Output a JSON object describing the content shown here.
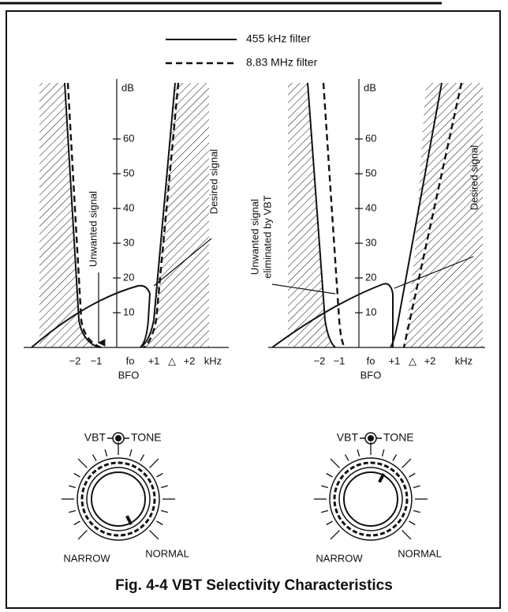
{
  "legend": [
    "455 kHz filter",
    "8.83 MHz filter"
  ],
  "panels": [
    {
      "y_unit": "dB",
      "y_ticks": [
        "10",
        "20",
        "30",
        "40",
        "50",
        "60"
      ],
      "x_ticks": [
        "−2",
        "−1",
        "fo",
        "+1",
        "△",
        "+2",
        "kHz"
      ],
      "x_label": "BFO",
      "annotations": [
        "Unwanted signal",
        "Desired signal"
      ]
    },
    {
      "y_unit": "dB",
      "y_ticks": [
        "10",
        "20",
        "30",
        "40",
        "50",
        "60"
      ],
      "x_ticks": [
        "−2",
        "−1",
        "fo",
        "+1",
        "△",
        "+2",
        "kHz"
      ],
      "x_label": "BFO",
      "annotations": [
        "Unwanted signal",
        "eliminated by VBT",
        "Desired signal"
      ]
    }
  ],
  "knobs": [
    {
      "left": "VBT",
      "right": "TONE",
      "low": "NARROW",
      "high": "NORMAL"
    },
    {
      "left": "VBT",
      "right": "TONE",
      "low": "NARROW",
      "high": "NORMAL"
    }
  ],
  "caption": "Fig. 4-4 VBT Selectivity Characteristics"
}
